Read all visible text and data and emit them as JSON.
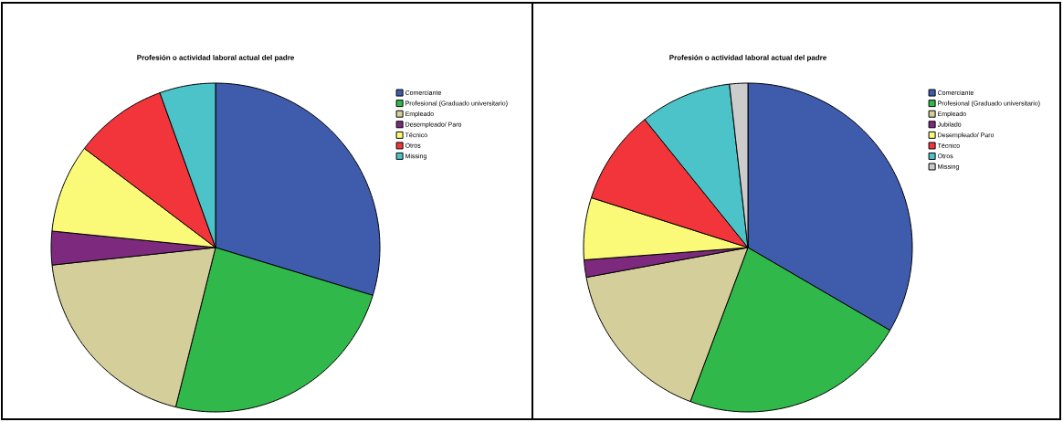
{
  "chart_data": [
    {
      "type": "pie",
      "title": "Profesión o actividad laboral actual del padre",
      "legend": "right",
      "categories": [
        "Comerciante",
        "Profesional (Graduado universitario)",
        "Empleado",
        "Desempleado/ Paro",
        "Técnico",
        "Otros",
        "Missing"
      ],
      "values": [
        29.7,
        24.2,
        19.4,
        3.3,
        8.7,
        9.2,
        5.5
      ],
      "colors": [
        "#3f5bab",
        "#30b84a",
        "#d4cf9a",
        "#7d2a7e",
        "#fafa78",
        "#f1353b",
        "#4cc3c9"
      ]
    },
    {
      "type": "pie",
      "title": "Profesión o actividad laboral actual del padre",
      "legend": "right",
      "categories": [
        "Comerciante",
        "Profesional (Graduado universitario)",
        "Empleado",
        "Jubilado",
        "Desempleado/ Paro",
        "Técnico",
        "Otros",
        "Missing"
      ],
      "values": [
        33.4,
        22.3,
        16.4,
        1.7,
        6.1,
        9.3,
        9.0,
        1.8
      ],
      "colors": [
        "#3f5bab",
        "#30b84a",
        "#d4cf9a",
        "#7d2a7e",
        "#fafa78",
        "#f1353b",
        "#4cc3c9",
        "#cccccc"
      ]
    }
  ]
}
